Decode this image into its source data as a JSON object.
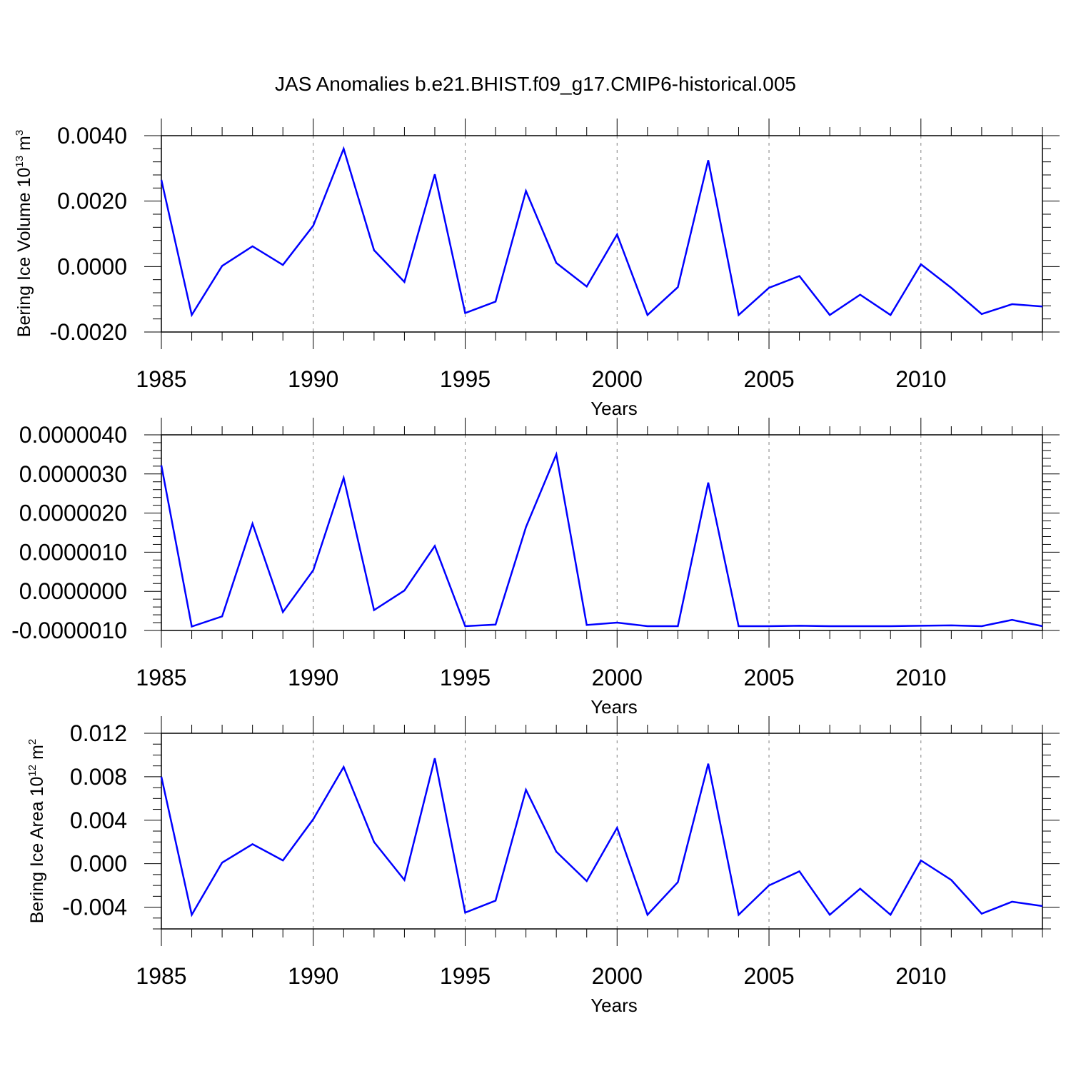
{
  "figure_title": "JAS Anomalies b.e21.BHIST.f09_g17.CMIP6-historical.005",
  "colors": {
    "line": "#0000ff",
    "axes": "#000000",
    "grid": "#808080"
  },
  "chart_data": [
    {
      "type": "line",
      "xlabel": "Years",
      "ylabel": {
        "text": "Bering Ice Volume 10",
        "sup1": "13",
        "mid": " m",
        "sup2": "3"
      },
      "xlim": [
        1985,
        2014
      ],
      "ylim": [
        -0.002,
        0.004
      ],
      "x_ticks": [
        "1985",
        "1990",
        "1995",
        "2000",
        "2005",
        "2010"
      ],
      "y_ticks": [
        {
          "value": -0.002,
          "label": "-0.0020"
        },
        {
          "value": 0.0,
          "label": "0.0000"
        },
        {
          "value": 0.002,
          "label": "0.0020"
        },
        {
          "value": 0.004,
          "label": "0.0040"
        }
      ],
      "grid": "dashed vertical at major x ticks",
      "series": [
        {
          "x": [
            1985,
            1986,
            1987,
            1988,
            1989,
            1990,
            1991,
            1992,
            1993,
            1994,
            1995,
            1996,
            1997,
            1998,
            1999,
            2000,
            2001,
            2002,
            2003,
            2004,
            2005,
            2006,
            2007,
            2008,
            2009,
            2010,
            2011,
            2012,
            2013,
            2014
          ],
          "values": [
            0.00265,
            -0.00148,
            2e-05,
            0.00062,
            5e-05,
            0.00125,
            0.0036,
            0.0005,
            -0.00047,
            0.00282,
            -0.00142,
            -0.00107,
            0.00231,
            0.00011,
            -0.00061,
            0.00098,
            -0.00148,
            -0.00063,
            0.00325,
            -0.00148,
            -0.00065,
            -0.00029,
            -0.00148,
            -0.00086,
            -0.00148,
            7e-05,
            -0.00065,
            -0.00145,
            -0.00115,
            -0.00122
          ]
        }
      ]
    },
    {
      "type": "line",
      "xlabel": "Years",
      "ylabel": null,
      "xlim": [
        1985,
        2014
      ],
      "ylim": [
        -1e-06,
        4e-06
      ],
      "x_ticks": [
        "1985",
        "1990",
        "1995",
        "2000",
        "2005",
        "2010"
      ],
      "y_ticks": [
        {
          "value": -1e-06,
          "label": "-0.0000010"
        },
        {
          "value": 0.0,
          "label": "0.0000000"
        },
        {
          "value": 1e-06,
          "label": "0.0000010"
        },
        {
          "value": 2e-06,
          "label": "0.0000020"
        },
        {
          "value": 3e-06,
          "label": "0.0000030"
        },
        {
          "value": 4e-06,
          "label": "0.0000040"
        }
      ],
      "grid": "dashed vertical at major x ticks",
      "series": [
        {
          "x": [
            1985,
            1986,
            1987,
            1988,
            1989,
            1990,
            1991,
            1992,
            1993,
            1994,
            1995,
            1996,
            1997,
            1998,
            1999,
            2000,
            2001,
            2002,
            2003,
            2004,
            2005,
            2006,
            2007,
            2008,
            2009,
            2010,
            2011,
            2012,
            2013,
            2014
          ],
          "values": [
            3.22e-06,
            -9e-07,
            -6.4e-07,
            1.73e-06,
            -5.3e-07,
            5.4e-07,
            2.9e-06,
            -4.8e-07,
            2e-08,
            1.16e-06,
            -8.9e-07,
            -8.5e-07,
            1.64e-06,
            3.5e-06,
            -8.6e-07,
            -8e-07,
            -8.9e-07,
            -8.9e-07,
            2.78e-06,
            -8.9e-07,
            -8.9e-07,
            -8.8e-07,
            -8.9e-07,
            -8.9e-07,
            -8.9e-07,
            -8.8e-07,
            -8.7e-07,
            -8.9e-07,
            -7.3e-07,
            -8.9e-07
          ]
        }
      ]
    },
    {
      "type": "line",
      "xlabel": "Years",
      "ylabel": {
        "text": "Bering Ice Area 10",
        "sup1": "12",
        "mid": " m",
        "sup2": "2"
      },
      "xlim": [
        1985,
        2014
      ],
      "ylim": [
        -0.006,
        0.012
      ],
      "x_ticks": [
        "1985",
        "1990",
        "1995",
        "2000",
        "2005",
        "2010"
      ],
      "y_ticks": [
        {
          "value": -0.004,
          "label": "-0.004"
        },
        {
          "value": 0.0,
          "label": "0.000"
        },
        {
          "value": 0.004,
          "label": "0.004"
        },
        {
          "value": 0.008,
          "label": "0.008"
        },
        {
          "value": 0.012,
          "label": "0.012"
        }
      ],
      "grid": "dashed vertical at major x ticks",
      "series": [
        {
          "x": [
            1985,
            1986,
            1987,
            1988,
            1989,
            1990,
            1991,
            1992,
            1993,
            1994,
            1995,
            1996,
            1997,
            1998,
            1999,
            2000,
            2001,
            2002,
            2003,
            2004,
            2005,
            2006,
            2007,
            2008,
            2009,
            2010,
            2011,
            2012,
            2013,
            2014
          ],
          "values": [
            0.008,
            -0.0047,
            0.0001,
            0.0018,
            0.0003,
            0.0041,
            0.0089,
            0.002,
            -0.0015,
            0.0097,
            -0.0045,
            -0.0034,
            0.0068,
            0.0011,
            -0.0016,
            0.0033,
            -0.0047,
            -0.0017,
            0.0092,
            -0.0047,
            -0.002,
            -0.0007,
            -0.0047,
            -0.0023,
            -0.0047,
            0.0003,
            -0.0015,
            -0.0046,
            -0.0035,
            -0.0039
          ]
        }
      ]
    }
  ]
}
